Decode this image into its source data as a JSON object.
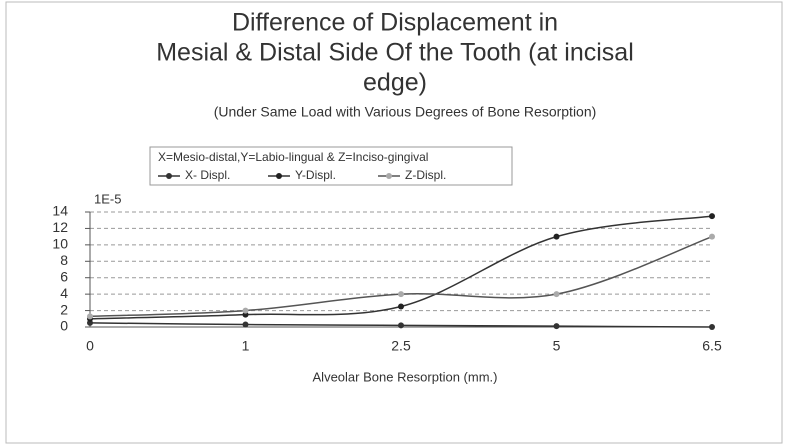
{
  "chart_data": {
    "type": "line",
    "title": [
      "Difference of Displacement in",
      "Mesial & Distal Side Of the Tooth (at incisal",
      "edge)"
    ],
    "subtitle": "(Under Same Load with Various Degrees of Bone Resorption)",
    "legend_title": "X=Mesio-distal,Y=Labio-lingual & Z=Inciso-gingival",
    "y_unit": "1E-5",
    "x_label": "Alveolar Bone Resorption (mm.)",
    "categories": [
      "0",
      "1",
      "2.5",
      "5",
      "6.5"
    ],
    "series": [
      {
        "name": "X- Displ.",
        "color": "#333333",
        "marker": "#333333",
        "values": [
          0.5,
          0.3,
          0.2,
          0.1,
          0
        ]
      },
      {
        "name": "Y-Displ.",
        "color": "#333333",
        "marker": "#222222",
        "values": [
          1,
          1.5,
          2.5,
          11,
          13.5
        ]
      },
      {
        "name": "Z-Displ.",
        "color": "#555555",
        "marker": "#aaaaaa",
        "values": [
          1.3,
          2,
          4,
          4,
          11
        ]
      }
    ],
    "ylim": [
      0,
      14
    ],
    "yticks": [
      0,
      2,
      4,
      6,
      8,
      10,
      12,
      14
    ],
    "grid": true
  }
}
